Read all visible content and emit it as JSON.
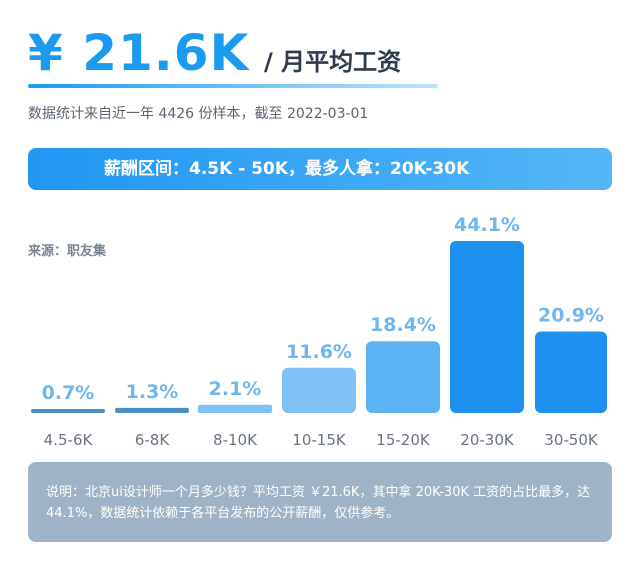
{
  "header": {
    "currency": "¥",
    "amount": "21.6K",
    "unit_label": "/ 月平均工资",
    "subtitle": "数据统计来自近一年 4426 份样本，截至 2022-03-01"
  },
  "banner": {
    "text": "薪酬区间：4.5K - 50K，最多人拿：20K-30K"
  },
  "source": "来源：职友集",
  "note": "说明：北京ui设计师一个月多少钱？平均工资 ￥21.6K，其中拿 20K-30K 工资的占比最多，达 44.1%，数据统计依赖于各平台发布的公开薪酬，仅供参考。",
  "colors": {
    "accent": "#1a9bf0",
    "bar_light": "#7fc1f4",
    "bar_mid": "#5bb3f5",
    "bar_strong": "#1e90f0",
    "bar_thin": "#4e8fc3",
    "label": "#6fb6ee",
    "note_bg": "#9eb4c6"
  },
  "chart_data": {
    "type": "bar",
    "categories": [
      "4.5-6K",
      "6-8K",
      "8-10K",
      "10-15K",
      "15-20K",
      "20-30K",
      "30-50K"
    ],
    "values": [
      0.7,
      1.3,
      2.1,
      11.6,
      18.4,
      44.1,
      20.9
    ],
    "value_labels": [
      "0.7%",
      "1.3%",
      "2.1%",
      "11.6%",
      "18.4%",
      "44.1%",
      "20.9%"
    ],
    "ylim": [
      0,
      44.1
    ],
    "grid": false,
    "xlabel": "",
    "ylabel": ""
  }
}
